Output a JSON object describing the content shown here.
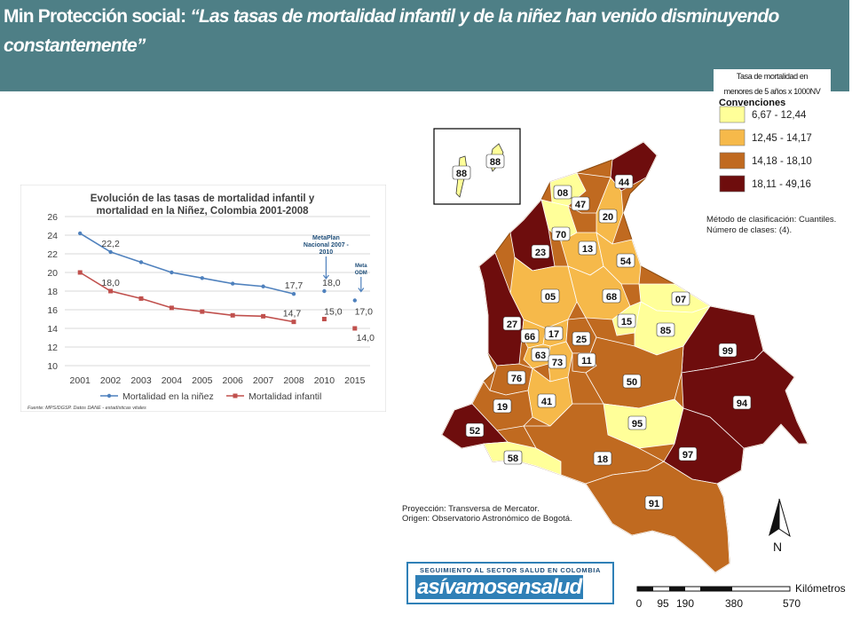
{
  "header": {
    "prefix": "Min Protección social: ",
    "quote": "“Las tasas de mortalidad infantil y de la niñez han venido disminuyendo constantemente”"
  },
  "map": {
    "legend_title_line1": "Tasa de mortalidad en",
    "legend_title_line2": "menores de 5 años x 1000NV",
    "legend_header_partial": "Convenciones",
    "legend": [
      {
        "range": "6,67 - 12,44",
        "color": "#ffff99"
      },
      {
        "range": "12,45 - 14,17",
        "color": "#f6b94a"
      },
      {
        "range": "14,18 - 18,10",
        "color": "#c06a20"
      },
      {
        "range": "18,11 - 49,16",
        "color": "#6e0d0d"
      }
    ],
    "method_line1": "Método de clasificación: Cuantiles.",
    "method_line2": "Número de clases: (4).",
    "projection_line1": "Proyección: Transversa de Mercator.",
    "projection_line2": "Origen: Observatorio Astronómico de Bogotá.",
    "north_label": "N",
    "scale_unit": "Kilómetros",
    "scale_ticks": [
      "0",
      "95",
      "190",
      "380",
      "570"
    ],
    "department_codes": [
      "88",
      "88",
      "08",
      "44",
      "47",
      "20",
      "70",
      "23",
      "13",
      "54",
      "05",
      "68",
      "07",
      "27",
      "15",
      "85",
      "66",
      "17",
      "25",
      "63",
      "73",
      "11",
      "99",
      "76",
      "50",
      "41",
      "19",
      "94",
      "95",
      "52",
      "97",
      "58",
      "18",
      "91"
    ]
  },
  "logo": {
    "top_text": "SEGUIMIENTO AL SECTOR SALUD EN COLOMBIA",
    "main_text": "asívamosensalud"
  },
  "chart_data": {
    "type": "line",
    "title_line1": "Evolución de las tasas de mortalidad infantil y",
    "title_line2": "mortalidad en la Niñez, Colombia 2001-2008",
    "categories": [
      "2001",
      "2002",
      "2003",
      "2004",
      "2005",
      "2006",
      "2007",
      "2008",
      "2010",
      "2015"
    ],
    "ylim": [
      10,
      26
    ],
    "yticks": [
      "10",
      "12",
      "14",
      "16",
      "18",
      "20",
      "22",
      "24",
      "26"
    ],
    "grid": true,
    "legend_position": "bottom",
    "series": [
      {
        "name": "Mortalidad en la niñez",
        "color": "#4f81bd",
        "values": [
          24.2,
          22.2,
          21.1,
          20.0,
          19.4,
          18.8,
          18.5,
          17.7,
          18.0,
          17.0
        ],
        "labels": [
          "",
          "22,2",
          "",
          "",
          "",
          "",
          "",
          "17,7",
          "18,0",
          "17,0"
        ]
      },
      {
        "name": "Mortalidad infantil",
        "color": "#c0504d",
        "values": [
          20.0,
          18.0,
          17.2,
          16.2,
          15.8,
          15.4,
          15.3,
          14.7,
          15.0,
          14.0
        ],
        "labels": [
          "",
          "18,0",
          "",
          "",
          "",
          "",
          "",
          "14,7",
          "15,0",
          "14,0"
        ]
      }
    ],
    "annotations": [
      {
        "text": "MetaPlan Nacional 2007 - 2010",
        "category": "2010"
      },
      {
        "text": "Meta ODM",
        "category": "2015"
      }
    ],
    "source": "Fuente: MPS/DGSP. Datos DANE - estadísticas vitales"
  }
}
